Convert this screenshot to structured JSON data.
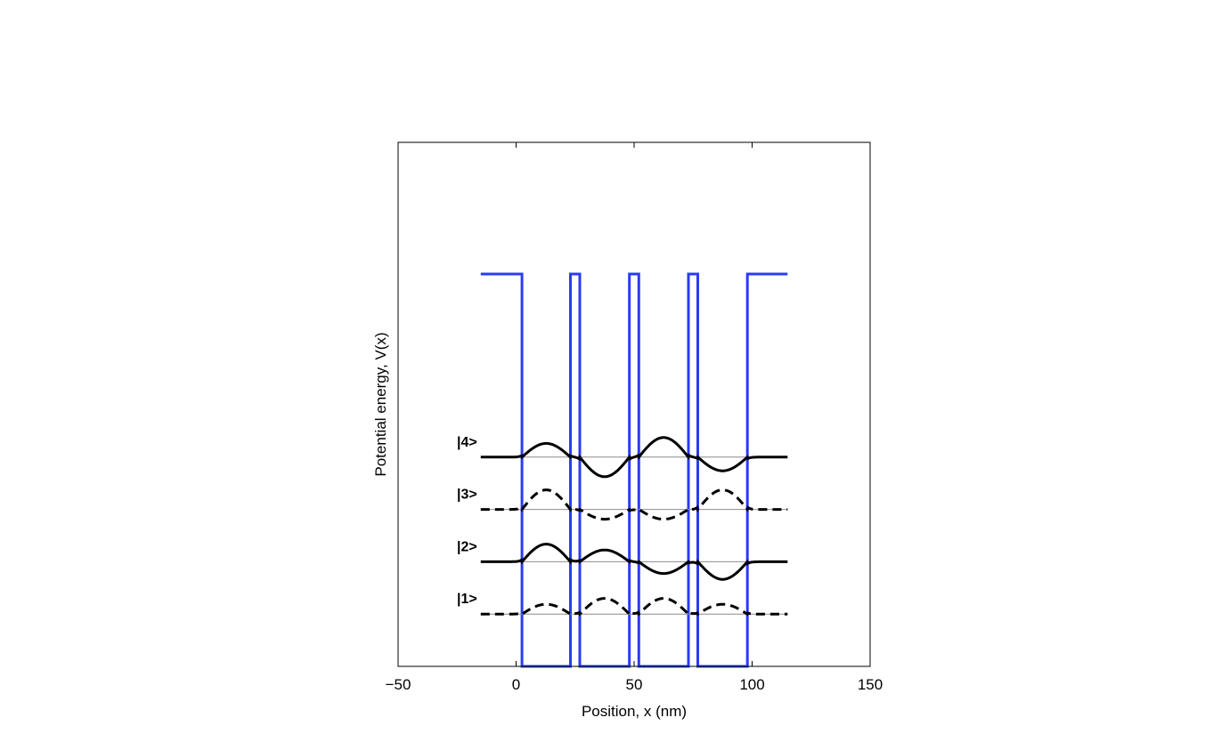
{
  "chart_data": {
    "type": "line",
    "title": "",
    "xlabel": "Position, x (nm)",
    "ylabel": "Potential  energy,  V(x)",
    "xlim": [
      -50,
      150
    ],
    "ylim": [
      0,
      1
    ],
    "grid": false,
    "x_ticks": [
      {
        "value": -50,
        "label": "−50"
      },
      {
        "value": 0,
        "label": "0"
      },
      {
        "value": 50,
        "label": "50"
      },
      {
        "value": 100,
        "label": "100"
      },
      {
        "value": 150,
        "label": "150"
      }
    ],
    "potential": {
      "color": "#2a3cf0",
      "x": [
        -15,
        2.5,
        2.5,
        23,
        23,
        27,
        27,
        48,
        48,
        52,
        52,
        73,
        73,
        77,
        77,
        98,
        98,
        115
      ],
      "y": [
        0.75,
        0.75,
        0,
        0,
        0.75,
        0.75,
        0,
        0,
        0.75,
        0.75,
        0,
        0,
        0.75,
        0.75,
        0,
        0,
        0.75,
        0.75
      ]
    },
    "barriers": [
      [
        -15,
        2.5
      ],
      [
        23,
        27
      ],
      [
        48,
        52
      ],
      [
        73,
        77
      ],
      [
        98,
        115
      ]
    ],
    "wells": [
      [
        2.5,
        23
      ],
      [
        27,
        48
      ],
      [
        52,
        73
      ],
      [
        77,
        98
      ]
    ],
    "states": [
      {
        "label": "|1>",
        "energy": 0.1,
        "style": "dashed",
        "well_amplitudes": [
          0.5,
          0.8,
          0.8,
          0.5
        ]
      },
      {
        "label": "|2>",
        "energy": 0.2,
        "style": "solid",
        "well_amplitudes": [
          0.9,
          0.6,
          -0.6,
          -0.9
        ]
      },
      {
        "label": "|3>",
        "energy": 0.3,
        "style": "dashed",
        "well_amplitudes": [
          1.0,
          -0.5,
          -0.5,
          1.0
        ]
      },
      {
        "label": "|4>",
        "energy": 0.4,
        "style": "solid",
        "well_amplitudes": [
          0.7,
          -1.0,
          1.0,
          -0.7
        ]
      }
    ],
    "state_color": "#000000",
    "baseline_color": "#8c8c8c"
  }
}
